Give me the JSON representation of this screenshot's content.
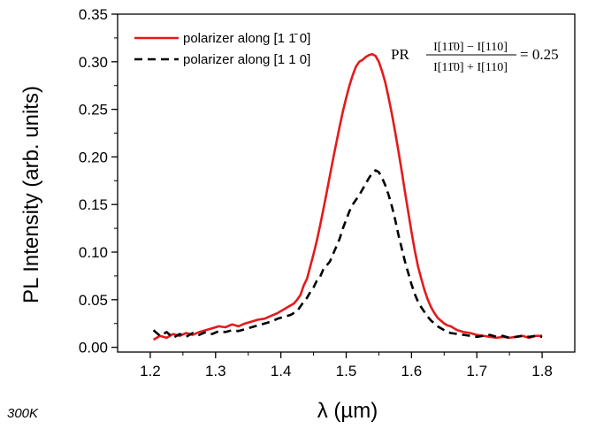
{
  "chart_data": {
    "type": "line",
    "xlabel": "λ (µm)",
    "ylabel": "PL Intensity (arb. units)",
    "xlim": [
      1.15,
      1.85
    ],
    "ylim": [
      -0.005,
      0.35
    ],
    "x_ticks": [
      1.2,
      1.3,
      1.4,
      1.5,
      1.6,
      1.7,
      1.8
    ],
    "x_tick_labels": [
      "1.2",
      "1.3",
      "1.4",
      "1.5",
      "1.6",
      "1.7",
      "1.8"
    ],
    "y_ticks": [
      0.0,
      0.05,
      0.1,
      0.15,
      0.2,
      0.25,
      0.3,
      0.35
    ],
    "y_tick_labels": [
      "0.00",
      "0.05",
      "0.10",
      "0.15",
      "0.20",
      "0.25",
      "0.30",
      "0.35"
    ],
    "legend_position": "top-left",
    "grid": false,
    "series": [
      {
        "name": "polarizer along [1 1̄ 0]",
        "color": "#e41a1c",
        "style": "solid",
        "x": [
          1.205,
          1.215,
          1.225,
          1.235,
          1.245,
          1.255,
          1.265,
          1.275,
          1.285,
          1.295,
          1.305,
          1.315,
          1.325,
          1.335,
          1.345,
          1.355,
          1.365,
          1.375,
          1.385,
          1.395,
          1.4,
          1.405,
          1.41,
          1.415,
          1.42,
          1.425,
          1.43,
          1.435,
          1.44,
          1.445,
          1.45,
          1.455,
          1.46,
          1.465,
          1.47,
          1.475,
          1.48,
          1.485,
          1.49,
          1.495,
          1.5,
          1.505,
          1.51,
          1.515,
          1.52,
          1.525,
          1.53,
          1.535,
          1.54,
          1.545,
          1.55,
          1.555,
          1.56,
          1.565,
          1.57,
          1.575,
          1.58,
          1.585,
          1.59,
          1.595,
          1.6,
          1.605,
          1.61,
          1.615,
          1.62,
          1.625,
          1.63,
          1.635,
          1.64,
          1.645,
          1.65,
          1.655,
          1.66,
          1.665,
          1.67,
          1.68,
          1.69,
          1.7,
          1.71,
          1.72,
          1.73,
          1.74,
          1.75,
          1.76,
          1.77,
          1.78,
          1.79,
          1.8
        ],
        "y": [
          0.008,
          0.012,
          0.01,
          0.014,
          0.012,
          0.015,
          0.013,
          0.016,
          0.018,
          0.02,
          0.022,
          0.021,
          0.024,
          0.022,
          0.025,
          0.027,
          0.029,
          0.03,
          0.033,
          0.036,
          0.038,
          0.04,
          0.042,
          0.044,
          0.046,
          0.05,
          0.055,
          0.065,
          0.072,
          0.085,
          0.098,
          0.112,
          0.128,
          0.145,
          0.162,
          0.18,
          0.198,
          0.215,
          0.232,
          0.248,
          0.262,
          0.275,
          0.286,
          0.295,
          0.3,
          0.302,
          0.305,
          0.307,
          0.308,
          0.306,
          0.3,
          0.29,
          0.278,
          0.262,
          0.245,
          0.226,
          0.206,
          0.185,
          0.163,
          0.142,
          0.121,
          0.102,
          0.085,
          0.072,
          0.06,
          0.05,
          0.042,
          0.036,
          0.031,
          0.028,
          0.025,
          0.023,
          0.022,
          0.02,
          0.018,
          0.016,
          0.015,
          0.013,
          0.012,
          0.011,
          0.01,
          0.011,
          0.01,
          0.011,
          0.012,
          0.01,
          0.012,
          0.012
        ]
      },
      {
        "name": "polarizer along [1 1 0]",
        "color": "#000000",
        "style": "dashed",
        "x": [
          1.205,
          1.215,
          1.225,
          1.235,
          1.245,
          1.255,
          1.265,
          1.275,
          1.285,
          1.295,
          1.305,
          1.315,
          1.325,
          1.335,
          1.345,
          1.355,
          1.365,
          1.375,
          1.385,
          1.395,
          1.405,
          1.415,
          1.425,
          1.43,
          1.435,
          1.44,
          1.445,
          1.45,
          1.455,
          1.46,
          1.465,
          1.47,
          1.475,
          1.48,
          1.485,
          1.49,
          1.495,
          1.5,
          1.505,
          1.51,
          1.515,
          1.52,
          1.525,
          1.53,
          1.535,
          1.54,
          1.545,
          1.55,
          1.555,
          1.56,
          1.565,
          1.57,
          1.575,
          1.58,
          1.585,
          1.59,
          1.595,
          1.6,
          1.605,
          1.61,
          1.615,
          1.62,
          1.625,
          1.63,
          1.635,
          1.64,
          1.645,
          1.65,
          1.655,
          1.66,
          1.67,
          1.68,
          1.69,
          1.7,
          1.71,
          1.72,
          1.73,
          1.74,
          1.75,
          1.76,
          1.77,
          1.78,
          1.79,
          1.8
        ],
        "y": [
          0.018,
          0.012,
          0.016,
          0.01,
          0.014,
          0.011,
          0.015,
          0.013,
          0.016,
          0.014,
          0.017,
          0.016,
          0.018,
          0.017,
          0.019,
          0.021,
          0.023,
          0.025,
          0.027,
          0.03,
          0.032,
          0.034,
          0.038,
          0.043,
          0.048,
          0.052,
          0.058,
          0.063,
          0.07,
          0.074,
          0.082,
          0.086,
          0.09,
          0.098,
          0.106,
          0.114,
          0.125,
          0.134,
          0.143,
          0.15,
          0.155,
          0.16,
          0.166,
          0.172,
          0.178,
          0.183,
          0.186,
          0.184,
          0.178,
          0.17,
          0.16,
          0.148,
          0.134,
          0.118,
          0.104,
          0.09,
          0.078,
          0.066,
          0.056,
          0.048,
          0.042,
          0.037,
          0.032,
          0.028,
          0.025,
          0.022,
          0.02,
          0.018,
          0.016,
          0.015,
          0.014,
          0.013,
          0.012,
          0.011,
          0.012,
          0.013,
          0.011,
          0.012,
          0.01,
          0.011,
          0.012,
          0.011,
          0.012,
          0.011
        ]
      }
    ],
    "annotation": {
      "lhs": "PR",
      "numerator": "I[11̄0] − I[110]",
      "denominator": "I[11̄0] + I[110]",
      "result": "= 0.25"
    },
    "corner_note": "300K"
  }
}
